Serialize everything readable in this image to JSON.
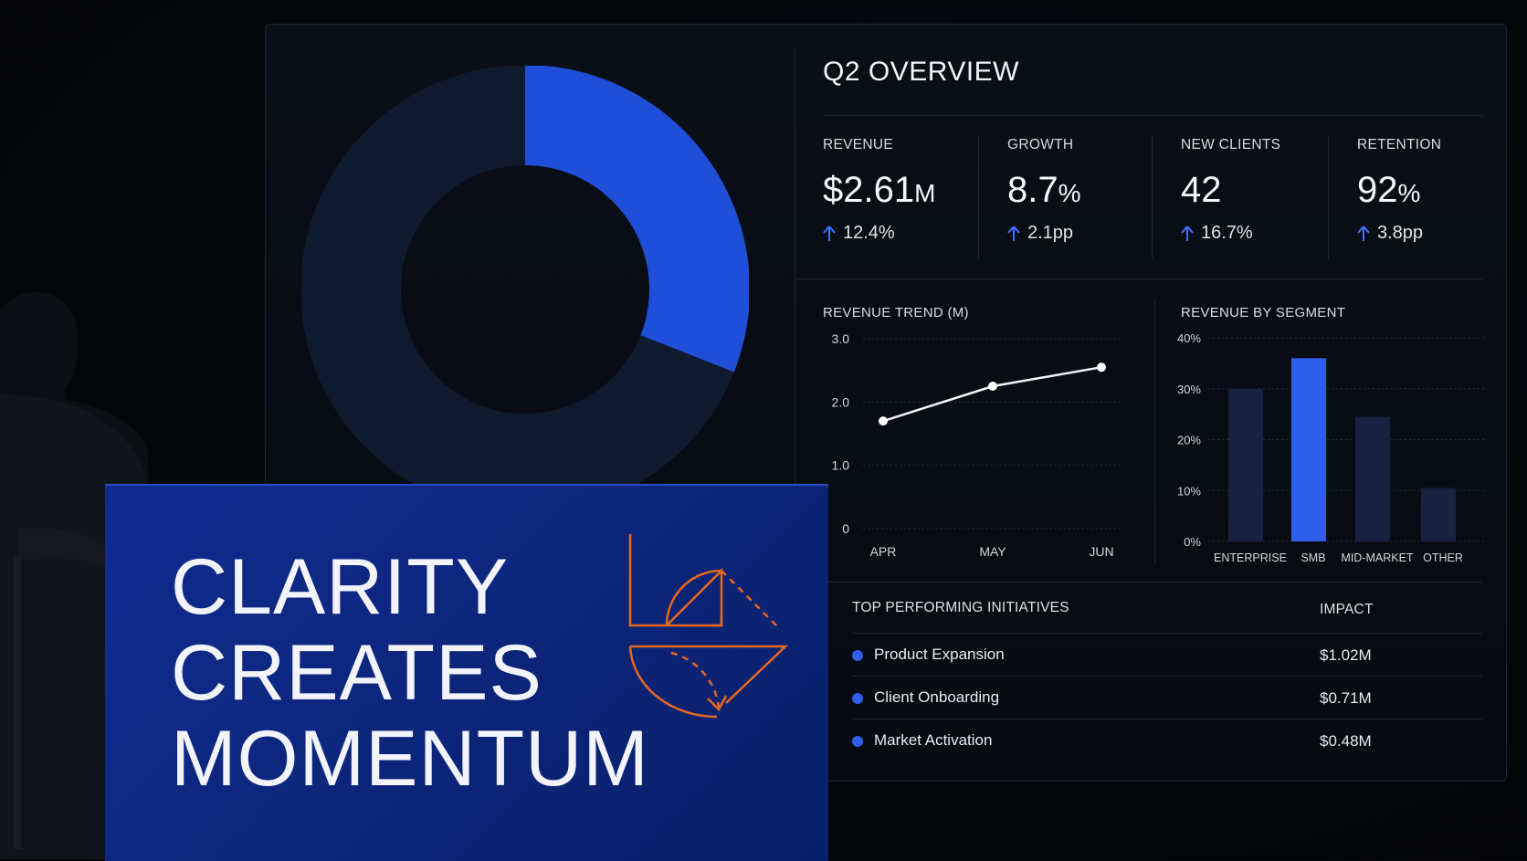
{
  "overview": {
    "title": "Q2 OVERVIEW"
  },
  "kpis": [
    {
      "label": "REVENUE",
      "value": "$2.61",
      "unit": "M",
      "delta": "12.4%"
    },
    {
      "label": "GROWTH",
      "value": "8.7",
      "unit": "%",
      "delta": "2.1pp"
    },
    {
      "label": "NEW CLIENTS",
      "value": "42",
      "unit": "",
      "delta": "16.7%"
    },
    {
      "label": "RETENTION",
      "value": "92",
      "unit": "%",
      "delta": "3.8pp"
    }
  ],
  "colors": {
    "accent": "#2f5ee8",
    "bar_dim": "#162240",
    "card_bg": "#0c2477",
    "logo_orange": "#e8681f"
  },
  "donut": {
    "highlight_share": 0.31
  },
  "chart_data": [
    {
      "type": "line",
      "title": "REVENUE TREND (M)",
      "x": [
        "APR",
        "MAY",
        "JUN"
      ],
      "values": [
        1.7,
        2.25,
        2.55
      ],
      "yticks": [
        "3.0",
        "2.0",
        "1.0",
        "0"
      ],
      "ylim": [
        0,
        3
      ]
    },
    {
      "type": "bar",
      "title": "REVENUE BY SEGMENT",
      "categories": [
        "ENTERPRISE",
        "SMB",
        "MID-MARKET",
        "OTHER"
      ],
      "values": [
        30,
        36,
        24.5,
        10.5
      ],
      "highlight": "SMB",
      "yticks": [
        "40%",
        "30%",
        "20%",
        "10%",
        "0%"
      ],
      "ylim": [
        0,
        40
      ]
    }
  ],
  "initiatives": {
    "header": "TOP PERFORMING INITIATIVES",
    "impact_header": "IMPACT",
    "rows": [
      {
        "name": "Product Expansion",
        "impact": "$1.02M"
      },
      {
        "name": "Client Onboarding",
        "impact": "$0.71M"
      },
      {
        "name": "Market Activation",
        "impact": "$0.48M"
      }
    ]
  },
  "card": {
    "line1": "CLARITY",
    "line2": "CREATES",
    "line3": "MOMENTUM"
  }
}
